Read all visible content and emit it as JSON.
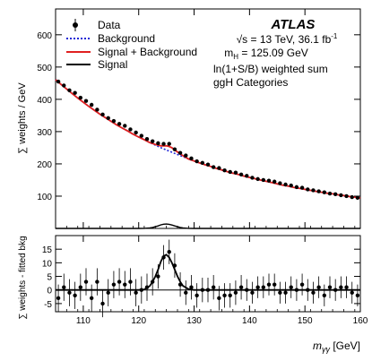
{
  "chart_data": {
    "type": "scatter",
    "annotations": {
      "experiment": "ATLAS",
      "energy_lumi": "√s = 13 TeV, 36.1 fb",
      "energy_lumi_sup": "-1",
      "mass_line": "m",
      "mass_sub": "H",
      "mass_value": " = 125.09 GeV",
      "weighting": "ln(1+S/B) weighted sum",
      "categories": "ggH Categories"
    },
    "legend": {
      "placement": "top-left",
      "entries": [
        "Data",
        "Background",
        "Signal + Background",
        "Signal"
      ]
    },
    "colors": {
      "data": "#000000",
      "background": "#1f24d6",
      "signal_plus_background": "#e02020",
      "signal": "#000000"
    },
    "xaxis": {
      "label_main": "m",
      "label_sub": "γγ",
      "label_unit": " [GeV]",
      "range": [
        105,
        160
      ],
      "ticks": [
        110,
        120,
        130,
        140,
        150,
        160
      ]
    },
    "panels": [
      {
        "id": "main",
        "ylabel": "∑ weights / GeV",
        "ylim": [
          0,
          680
        ],
        "yticks": [
          100,
          200,
          300,
          400,
          500,
          600
        ],
        "series": [
          {
            "name": "Data",
            "style": "points",
            "x": [
              105.5,
              106.5,
              107.5,
              108.5,
              109.5,
              110.5,
              111.5,
              112.5,
              113.5,
              114.5,
              115.5,
              116.5,
              117.5,
              118.5,
              119.5,
              120.5,
              121.5,
              122.5,
              123.5,
              124.5,
              125.5,
              126.5,
              127.5,
              128.5,
              129.5,
              130.5,
              131.5,
              132.5,
              133.5,
              134.5,
              135.5,
              136.5,
              137.5,
              138.5,
              139.5,
              140.5,
              141.5,
              142.5,
              143.5,
              144.5,
              145.5,
              146.5,
              147.5,
              148.5,
              149.5,
              150.5,
              151.5,
              152.5,
              153.5,
              154.5,
              155.5,
              156.5,
              157.5,
              158.5,
              159.5
            ],
            "y": [
              455,
              443,
              428,
              420,
              405,
              395,
              383,
              368,
              353,
              342,
              333,
              324,
              318,
              307,
              297,
              287,
              277,
              270,
              264,
              262,
              262,
              245,
              234,
              226,
              217,
              208,
              203,
              198,
              190,
              187,
              180,
              175,
              173,
              167,
              163,
              157,
              153,
              150,
              148,
              145,
              140,
              136,
              133,
              128,
              126,
              121,
              118,
              115,
              112,
              108,
              106,
              103,
              100,
              97,
              95
            ]
          },
          {
            "name": "Background",
            "style": "dashed-line",
            "x": [
              105,
              106,
              107,
              108,
              109,
              110,
              111,
              112,
              113,
              114,
              115,
              116,
              117,
              118,
              119,
              120,
              121,
              122,
              123,
              124,
              125,
              126,
              127,
              128,
              129,
              130,
              131,
              132,
              133,
              134,
              135,
              136,
              137,
              138,
              139,
              140,
              141,
              142,
              143,
              144,
              145,
              146,
              147,
              148,
              149,
              150,
              151,
              152,
              153,
              154,
              155,
              156,
              157,
              158,
              159,
              160
            ],
            "y": [
              461,
              446,
              432,
              418,
              404,
              391,
              378,
              366,
              354,
              343,
              332,
              321,
              311,
              302,
              292,
              283,
              275,
              266,
              258,
              250,
              243,
              236,
              229,
              222,
              215,
              209,
              203,
              197,
              192,
              186,
              181,
              176,
              171,
              167,
              162,
              158,
              154,
              150,
              146,
              142,
              138,
              134,
              131,
              127,
              124,
              121,
              118,
              115,
              112,
              109,
              107,
              104,
              102,
              99,
              97,
              94
            ]
          },
          {
            "name": "Signal + Background",
            "style": "solid-line",
            "x": [
              105,
              106,
              107,
              108,
              109,
              110,
              111,
              112,
              113,
              114,
              115,
              116,
              117,
              118,
              119,
              120,
              121,
              122,
              122.5,
              123,
              123.5,
              124,
              124.5,
              125,
              125.5,
              126,
              126.5,
              127,
              127.5,
              128,
              129,
              130,
              131,
              132,
              133,
              134,
              135,
              136,
              137,
              138,
              139,
              140,
              141,
              142,
              143,
              144,
              145,
              146,
              147,
              148,
              149,
              150,
              151,
              152,
              153,
              154,
              155,
              156,
              157,
              158,
              159,
              160
            ],
            "y": [
              461,
              446,
              432,
              418,
              404,
              391,
              378,
              366,
              354,
              343,
              332,
              321,
              311,
              302,
              292,
              283,
              275,
              266,
              263,
              260,
              258,
              256,
              256,
              256,
              254,
              250,
              243,
              237,
              231,
              225,
              215,
              209,
              203,
              197,
              192,
              186,
              181,
              176,
              171,
              167,
              162,
              158,
              154,
              150,
              146,
              142,
              138,
              134,
              131,
              127,
              124,
              121,
              118,
              115,
              112,
              109,
              107,
              104,
              102,
              99,
              97,
              94
            ]
          }
        ]
      },
      {
        "id": "residual",
        "ylabel": "∑ weights - fitted bkg",
        "ylim": [
          -8,
          20
        ],
        "yticks": [
          -5,
          0,
          5,
          10,
          15
        ],
        "series": [
          {
            "name": "Data",
            "style": "points",
            "x": [
              105.5,
              106.5,
              107.5,
              108.5,
              109.5,
              110.5,
              111.5,
              112.5,
              113.5,
              114.5,
              115.5,
              116.5,
              117.5,
              118.5,
              119.5,
              120.5,
              121.5,
              122.5,
              123.5,
              124.5,
              125.5,
              126.5,
              127.5,
              128.5,
              129.5,
              130.5,
              131.5,
              132.5,
              133.5,
              134.5,
              135.5,
              136.5,
              137.5,
              138.5,
              139.5,
              140.5,
              141.5,
              142.5,
              143.5,
              144.5,
              145.5,
              146.5,
              147.5,
              148.5,
              149.5,
              150.5,
              151.5,
              152.5,
              153.5,
              154.5,
              155.5,
              156.5,
              157.5,
              158.5,
              159.5
            ],
            "y": [
              -3,
              1,
              -1,
              -2,
              1,
              3,
              -3,
              3,
              -5,
              -1,
              2,
              3,
              2,
              3,
              -1,
              0,
              1,
              3,
              5,
              12,
              14,
              9,
              2,
              -1,
              1,
              -2,
              0,
              0,
              1,
              -3,
              -2,
              -2,
              -1,
              1,
              0,
              -1,
              1,
              1,
              2,
              2,
              -1,
              -1,
              1,
              0,
              2,
              0,
              -1,
              1,
              -2,
              1,
              0,
              1,
              1,
              -1,
              -2
            ],
            "yerr": [
              5,
              5,
              5,
              5,
              5,
              5,
              5,
              5,
              5,
              5,
              5,
              5,
              5,
              5,
              5,
              5,
              5,
              5,
              4.5,
              4.5,
              4.5,
              4.5,
              4.5,
              4.5,
              4.5,
              4.5,
              4.5,
              4.5,
              4.5,
              4.5,
              4.5,
              4.5,
              4.5,
              4.5,
              4,
              4,
              4,
              4,
              4,
              4,
              4,
              4,
              4,
              4,
              4,
              4,
              4,
              4,
              4,
              4,
              4,
              4,
              4,
              4,
              4
            ]
          },
          {
            "name": "Signal",
            "style": "solid-line",
            "x": [
              105,
              110,
              115,
              120,
              121,
              122,
              122.5,
              123,
              123.5,
              124,
              124.5,
              125,
              125.5,
              126,
              126.5,
              127,
              127.5,
              128,
              129,
              130,
              135,
              140,
              145,
              150,
              155,
              160
            ],
            "y": [
              0,
              0,
              0,
              0,
              0.2,
              1.5,
              3,
              5,
              7.5,
              10.5,
              12.5,
              13,
              12,
              10,
              7.5,
              5,
              3,
              1.5,
              0.3,
              0,
              0,
              0,
              0,
              0,
              0,
              0
            ]
          }
        ]
      }
    ]
  }
}
